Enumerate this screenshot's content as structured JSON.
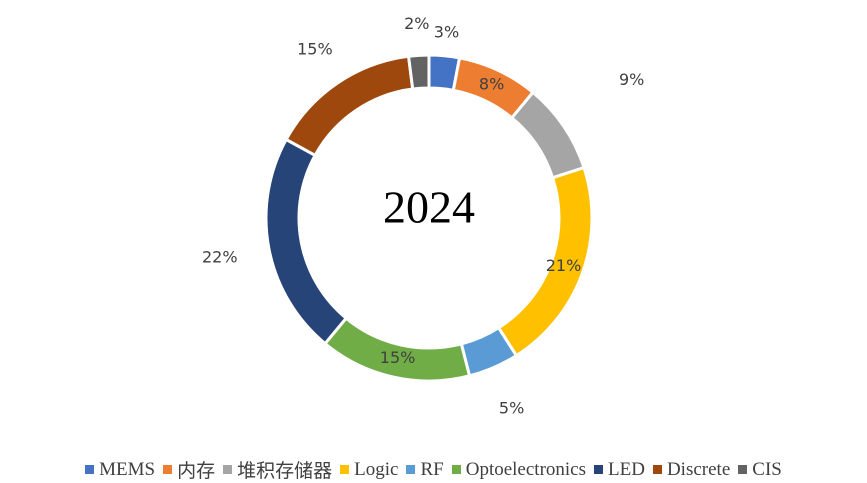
{
  "chart_data": {
    "type": "donut",
    "title": "2024",
    "categories": [
      "MEMS",
      "内存",
      "堆积存储器",
      "Logic",
      "RF",
      "Optoelectronics",
      "LED",
      "Discrete",
      "CIS"
    ],
    "values": [
      3,
      8,
      9,
      21,
      5,
      15,
      22,
      15,
      2
    ],
    "value_labels": [
      "3%",
      "8%",
      "9%",
      "21%",
      "5%",
      "15%",
      "22%",
      "15%",
      "2%"
    ],
    "colors": [
      "#4472c4",
      "#ed7d31",
      "#a5a5a5",
      "#ffc000",
      "#5b9bd5",
      "#70ad47",
      "#264478",
      "#9e480e",
      "#636363"
    ],
    "legend": "bottom"
  }
}
